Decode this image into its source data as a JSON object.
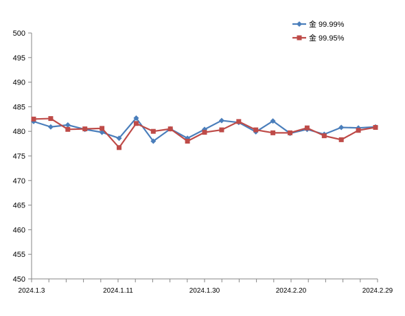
{
  "chart_data": {
    "type": "line",
    "title": "",
    "xlabel": "",
    "ylabel": "",
    "ylim": [
      450,
      500
    ],
    "yticks": [
      450,
      455,
      460,
      465,
      470,
      475,
      480,
      485,
      490,
      495,
      500
    ],
    "categories": [
      "2024.1.3",
      "",
      "",
      "",
      "",
      "2024.1.11",
      "",
      "",
      "",
      "",
      "2024.1.30",
      "",
      "",
      "",
      "",
      "2024.2.20",
      "",
      "",
      "",
      "",
      "2024.2.29"
    ],
    "grid": false,
    "legend_position": "top-right",
    "series": [
      {
        "name": "金 99.99%",
        "color": "#4a7ebb",
        "marker": "diamond",
        "values": [
          482.0,
          480.9,
          481.3,
          480.4,
          479.8,
          478.6,
          482.7,
          478.0,
          480.5,
          478.6,
          480.4,
          482.2,
          481.8,
          479.9,
          482.1,
          479.6,
          480.4,
          479.4,
          480.8,
          480.7,
          480.9
        ]
      },
      {
        "name": "金 99.95%",
        "color": "#be4b48",
        "marker": "square",
        "values": [
          482.5,
          482.6,
          480.4,
          480.5,
          480.6,
          476.7,
          481.6,
          480.0,
          480.5,
          478.0,
          479.8,
          480.3,
          482.0,
          480.3,
          479.7,
          479.7,
          480.7,
          479.1,
          478.3,
          480.2,
          480.8
        ]
      }
    ]
  }
}
